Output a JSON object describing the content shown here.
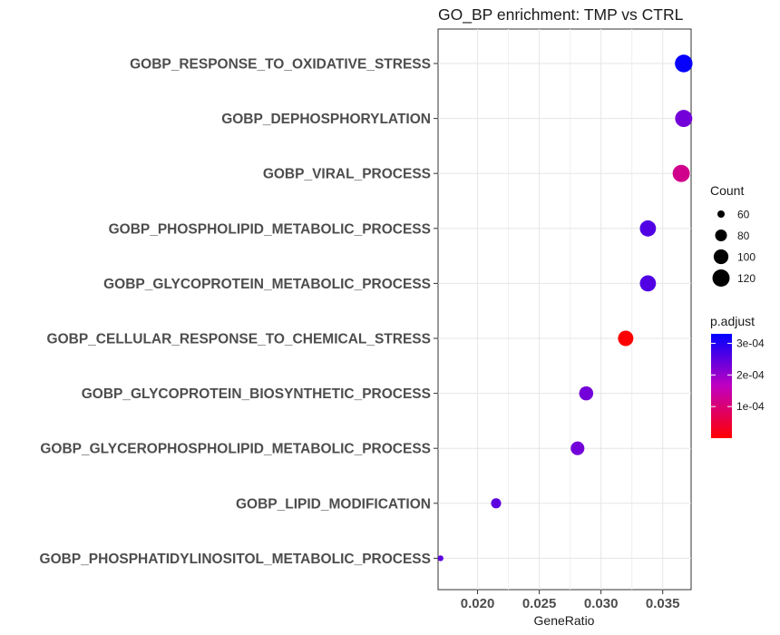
{
  "chart_data": {
    "type": "scatter",
    "title": "GO_BP enrichment: TMP vs CTRL",
    "xlabel": "GeneRatio",
    "ylabel": "",
    "xlim": [
      0.0168,
      0.0373
    ],
    "x_ticks": [
      0.02,
      0.025,
      0.03,
      0.035
    ],
    "x_tick_labels": [
      "0.020",
      "0.025",
      "0.030",
      "0.035"
    ],
    "grid": true,
    "categories": [
      "GOBP_RESPONSE_TO_OXIDATIVE_STRESS",
      "GOBP_DEPHOSPHORYLATION",
      "GOBP_VIRAL_PROCESS",
      "GOBP_PHOSPHOLIPID_METABOLIC_PROCESS",
      "GOBP_GLYCOPROTEIN_METABOLIC_PROCESS",
      "GOBP_CELLULAR_RESPONSE_TO_CHEMICAL_STRESS",
      "GOBP_GLYCOPROTEIN_BIOSYNTHETIC_PROCESS",
      "GOBP_GLYCEROPHOSPHOLIPID_METABOLIC_PROCESS",
      "GOBP_LIPID_MODIFICATION",
      "GOBP_PHOSPHATIDYLINOSITOL_METABOLIC_PROCESS"
    ],
    "points": [
      {
        "term": "GOBP_RESPONSE_TO_OXIDATIVE_STRESS",
        "gene_ratio": 0.0367,
        "count": 124,
        "p_adjust": 0.000325
      },
      {
        "term": "GOBP_DEPHOSPHORYLATION",
        "gene_ratio": 0.0367,
        "count": 120,
        "p_adjust": 0.00023
      },
      {
        "term": "GOBP_VIRAL_PROCESS",
        "gene_ratio": 0.0365,
        "count": 120,
        "p_adjust": 0.00012
      },
      {
        "term": "GOBP_PHOSPHOLIPID_METABOLIC_PROCESS",
        "gene_ratio": 0.0338,
        "count": 111,
        "p_adjust": 0.00026
      },
      {
        "term": "GOBP_GLYCOPROTEIN_METABOLIC_PROCESS",
        "gene_ratio": 0.0338,
        "count": 111,
        "p_adjust": 0.00026
      },
      {
        "term": "GOBP_CELLULAR_RESPONSE_TO_CHEMICAL_STRESS",
        "gene_ratio": 0.032,
        "count": 105,
        "p_adjust": 3e-06
      },
      {
        "term": "GOBP_GLYCOPROTEIN_BIOSYNTHETIC_PROCESS",
        "gene_ratio": 0.0288,
        "count": 95,
        "p_adjust": 0.00023
      },
      {
        "term": "GOBP_GLYCEROPHOSPHOLIPID_METABOLIC_PROCESS",
        "gene_ratio": 0.0281,
        "count": 92,
        "p_adjust": 0.00023
      },
      {
        "term": "GOBP_LIPID_MODIFICATION",
        "gene_ratio": 0.0215,
        "count": 71,
        "p_adjust": 0.00025
      },
      {
        "term": "GOBP_PHOSPHATIDYLINOSITOL_METABOLIC_PROCESS",
        "gene_ratio": 0.017,
        "count": 56,
        "p_adjust": 0.00025
      }
    ],
    "size_legend": {
      "title": "Count",
      "values": [
        60,
        80,
        100,
        120
      ],
      "labels": [
        "60",
        "80",
        "100",
        "120"
      ]
    },
    "color_legend": {
      "title": "p.adjust",
      "range": [
        1e-07,
        0.00033
      ],
      "ticks": [
        0.0003,
        0.0002,
        0.0001
      ],
      "tick_labels": [
        "3e-04",
        "2e-04",
        "1e-04"
      ],
      "low_color": "#ff0000",
      "high_color": "#0000ff"
    },
    "legend_position": "right"
  }
}
